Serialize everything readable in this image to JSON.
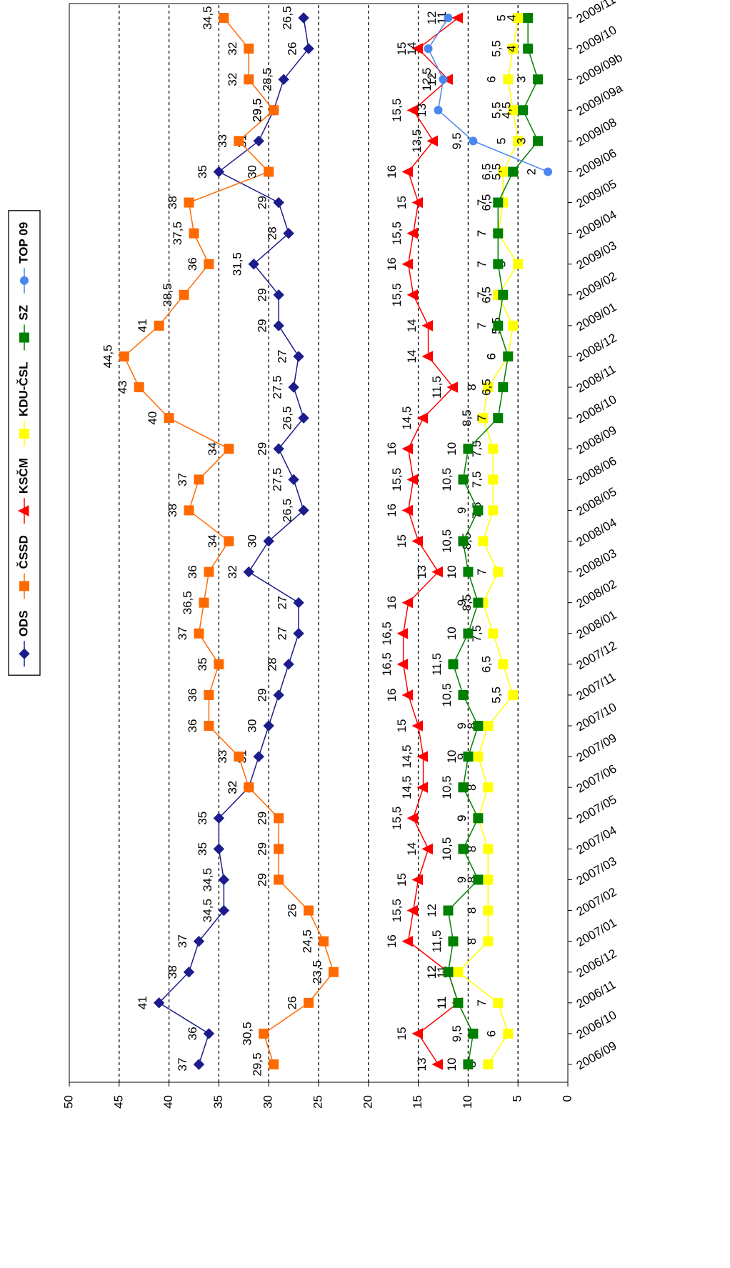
{
  "chart_data": {
    "type": "line",
    "categories": [
      "2006/09",
      "2006/10",
      "2006/11",
      "2006/12",
      "2007/01",
      "2007/02",
      "2007/03",
      "2007/04",
      "2007/05",
      "2007/06",
      "2007/09",
      "2007/10",
      "2007/11",
      "2007/12",
      "2008/01",
      "2008/02",
      "2008/03",
      "2008/04",
      "2008/05",
      "2008/06",
      "2008/09",
      "2008/10",
      "2008/11",
      "2008/12",
      "2009/01",
      "2009/02",
      "2009/03",
      "2009/04",
      "2009/05",
      "2009/06",
      "2009/08",
      "2009/09a",
      "2009/09b",
      "2009/10",
      "2009/11"
    ],
    "ylim": [
      0,
      50
    ],
    "yticks": [
      0,
      5,
      10,
      15,
      20,
      25,
      30,
      35,
      40,
      45,
      50
    ],
    "grid": true,
    "legend": "top",
    "series": [
      {
        "name": "ODS",
        "color": "#1c1c8c",
        "marker": "diamond",
        "values": [
          37,
          36,
          41,
          38,
          37,
          34.5,
          34.5,
          35,
          35,
          32,
          31,
          30,
          29,
          28,
          27,
          27,
          32,
          30,
          26.5,
          27.5,
          29,
          26.5,
          27.5,
          27,
          29,
          29,
          31.5,
          28,
          29,
          35,
          31,
          29.5,
          28.5,
          26,
          26.5
        ],
        "value_labels": [
          "37",
          "36",
          "41",
          "38",
          "37",
          "34,5",
          "34,5",
          "35",
          "35",
          "32",
          "31",
          "30",
          "29",
          "28",
          "27",
          "27",
          "32",
          "30",
          "26,5",
          "27,5",
          "29",
          "26,5",
          "27,5",
          "27",
          "29",
          "29",
          "31,5",
          "28",
          "29",
          "35",
          "31",
          "29,5",
          "28,5",
          "26",
          "26,5"
        ]
      },
      {
        "name": "ČSSD",
        "color": "#ff6a00",
        "marker": "square",
        "values": [
          29.5,
          30.5,
          26,
          23.5,
          24.5,
          26,
          29,
          29,
          29,
          32,
          33,
          36,
          36,
          35,
          37,
          36.5,
          36,
          34,
          38,
          37,
          34,
          40,
          43,
          44.5,
          41,
          38.5,
          36,
          37.5,
          38,
          30,
          33,
          29.5,
          32,
          32,
          34.5
        ],
        "value_labels": [
          "29,5",
          "30,5",
          "26",
          "23,5",
          "24,5",
          "26",
          "29",
          "29",
          "29",
          "32",
          "33",
          "36",
          "36",
          "35",
          "37",
          "36,5",
          "36",
          "34",
          "38",
          "37",
          "34",
          "40",
          "43",
          "44,5",
          "41",
          "38,5",
          "36",
          "37,5",
          "38",
          "30",
          "33",
          "29,5",
          "32",
          "32",
          "34,5"
        ]
      },
      {
        "name": "KSČM",
        "color": "#ff0000",
        "marker": "triangle",
        "values": [
          13,
          15,
          11,
          12,
          16,
          15.5,
          15,
          14,
          15.5,
          14.5,
          14.5,
          15,
          16,
          16.5,
          16.5,
          16,
          13,
          15,
          16,
          15.5,
          16,
          14.5,
          11.5,
          14,
          14,
          15.5,
          16,
          15.5,
          15,
          16,
          13.5,
          15.5,
          12,
          15,
          11
        ],
        "value_labels": [
          "13",
          "15",
          "11",
          "12",
          "16",
          "15,5",
          "15",
          "14",
          "15,5",
          "14,5",
          "14,5",
          "15",
          "16",
          "16,5",
          "16,5",
          "16",
          "13",
          "15",
          "16",
          "15,5",
          "16",
          "14,5",
          "11,5",
          "14",
          "14",
          "15,5",
          "16",
          "15,5",
          "15",
          "16",
          "13,5",
          "15,5",
          "12",
          "15",
          "11"
        ]
      },
      {
        "name": "KDU-ČSL",
        "color": "#ffff00",
        "marker": "square",
        "values": [
          8,
          6,
          7,
          11,
          8,
          8,
          8,
          8,
          9,
          8,
          9,
          8,
          5.5,
          6.5,
          7.5,
          8.5,
          7,
          8.5,
          7.5,
          7.5,
          7.5,
          8.5,
          8,
          6,
          5.5,
          7,
          5,
          7,
          6.5,
          6.5,
          5,
          5.5,
          6,
          5.5,
          5
        ],
        "value_labels": [
          "8",
          "6",
          "7",
          "11",
          "8",
          "8",
          "8",
          "8",
          "9",
          "8",
          "9",
          "8",
          "5,5",
          "6,5",
          "7,5",
          "8,5",
          "7",
          "8,5",
          "7,5",
          "7,5",
          "7,5",
          "8,5",
          "8",
          "6",
          "5,5",
          "7",
          "5",
          "7",
          "6,5",
          "6,5",
          "5",
          "5,5",
          "6",
          "5,5",
          "5"
        ]
      },
      {
        "name": "SZ",
        "color": "#008000",
        "marker": "square",
        "values": [
          10,
          9.5,
          11,
          12,
          11.5,
          12,
          9,
          10.5,
          9,
          10.5,
          10,
          9,
          10.5,
          11.5,
          10,
          9,
          10,
          10.5,
          9,
          10.5,
          10,
          7,
          6.5,
          6,
          7,
          6.5,
          7,
          7,
          7,
          5.5,
          3,
          4.5,
          3,
          4,
          4
        ],
        "value_labels": [
          "10",
          "9,5",
          "11",
          "12",
          "11,5",
          "12",
          "9",
          "10,5",
          "9",
          "10,5",
          "10",
          "9",
          "10,5",
          "11,5",
          "10",
          "9",
          "10",
          "10,5",
          "9",
          "10,5",
          "10",
          "7",
          "6,5",
          "6",
          "7",
          "6,5",
          "7",
          "7",
          "7",
          "5,5",
          "3",
          "4,5",
          "3",
          "4",
          "4"
        ]
      },
      {
        "name": "TOP 09",
        "color": "#4a86f0",
        "marker": "circle",
        "values": [
          null,
          null,
          null,
          null,
          null,
          null,
          null,
          null,
          null,
          null,
          null,
          null,
          null,
          null,
          null,
          null,
          null,
          null,
          null,
          null,
          null,
          null,
          null,
          null,
          null,
          null,
          null,
          null,
          null,
          2,
          9.5,
          13,
          12.5,
          14,
          12
        ],
        "value_labels": [
          null,
          null,
          null,
          null,
          null,
          null,
          null,
          null,
          null,
          null,
          null,
          null,
          null,
          null,
          null,
          null,
          null,
          null,
          null,
          null,
          null,
          null,
          null,
          null,
          null,
          null,
          null,
          null,
          null,
          "2",
          "9,5",
          "13",
          "12,5",
          "14",
          "12"
        ]
      }
    ]
  }
}
